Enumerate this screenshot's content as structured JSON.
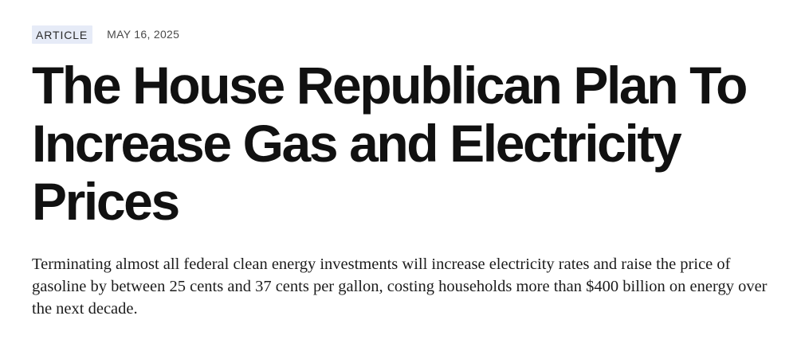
{
  "article": {
    "badge": "ARTICLE",
    "date": "MAY 16, 2025",
    "headline": "The House Republican Plan To Increase Gas and Electricity Prices",
    "dek": "Terminating almost all federal clean energy investments will increase electricity rates and raise the price of gasoline by between 25 cents and 37 cents per gallon, costing households more than $400 billion on energy over the next decade."
  },
  "colors": {
    "badge_background": "#e6ebf7",
    "headline_text": "#111111",
    "body_text": "#1c1c1c"
  }
}
